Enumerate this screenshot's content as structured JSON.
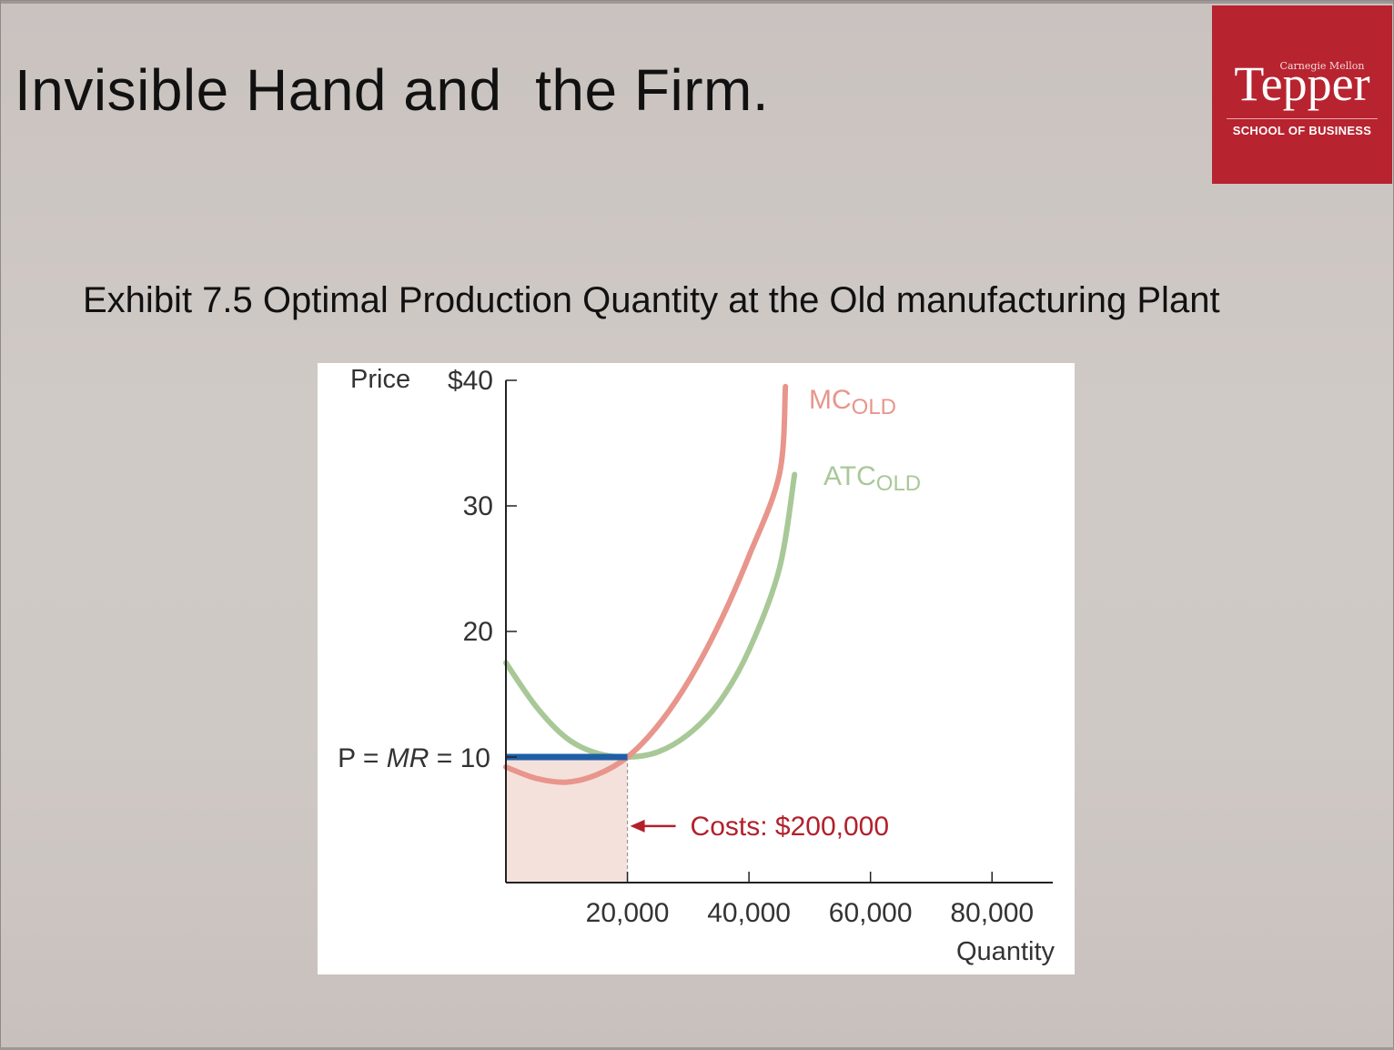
{
  "slide": {
    "title": "Invisible Hand and  the Firm.",
    "exhibit_title": "Exhibit 7.5 Optimal Production Quantity at the Old manufacturing Plant"
  },
  "logo": {
    "top_line": "Carnegie Mellon",
    "name": "Tepper",
    "bottom_line": "SCHOOL OF BUSINESS",
    "background_color": "#b7232f"
  },
  "chart_data": {
    "type": "line",
    "xlabel": "Quantity",
    "ylabel": "Price",
    "xlim": [
      0,
      90000
    ],
    "ylim": [
      0,
      40
    ],
    "x_ticks": [
      {
        "value": 20000,
        "label": "20,000"
      },
      {
        "value": 40000,
        "label": "40,000"
      },
      {
        "value": 60000,
        "label": "60,000"
      },
      {
        "value": 80000,
        "label": "80,000"
      }
    ],
    "y_ticks": [
      {
        "value": 40,
        "label": "$40"
      },
      {
        "value": 30,
        "label": "30"
      },
      {
        "value": 20,
        "label": "20"
      },
      {
        "value": 10,
        "label": "10"
      }
    ],
    "series": [
      {
        "name": "MC",
        "subscript": "OLD",
        "color": "#e8958c",
        "x": [
          0,
          5000,
          10000,
          15000,
          20000,
          25000,
          30000,
          35000,
          40000,
          45000,
          46000
        ],
        "y": [
          9.2,
          8.3,
          8.0,
          8.6,
          10.0,
          12.5,
          16.0,
          20.5,
          26.0,
          32.5,
          39.5
        ]
      },
      {
        "name": "ATC",
        "subscript": "OLD",
        "color": "#a9c898",
        "x": [
          0,
          5000,
          10000,
          15000,
          20000,
          25000,
          30000,
          35000,
          40000,
          45000,
          47500
        ],
        "y": [
          17.5,
          14.0,
          11.5,
          10.3,
          10.0,
          10.4,
          11.8,
          14.3,
          18.5,
          25.0,
          32.5
        ]
      }
    ],
    "price_line": {
      "label_prefix": "P = ",
      "label_mr": "MR",
      "label_suffix": " = 10",
      "value": 10,
      "x_end": 20000,
      "color": "#1f5fa6"
    },
    "optimal_quantity": 20000,
    "cost_region": {
      "x_from": 0,
      "x_to": 20000,
      "y_to": 10,
      "color": "#f5e1db"
    },
    "annotations": [
      {
        "text": "Costs: $200,000",
        "color": "#b2202b",
        "x": 20000,
        "y": 4.5
      }
    ]
  }
}
